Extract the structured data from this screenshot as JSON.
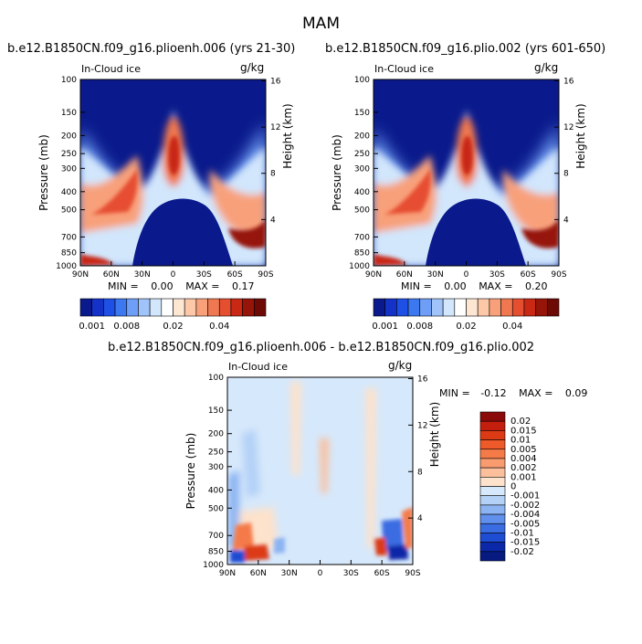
{
  "page": {
    "title": "MAM",
    "colors": {
      "background": "#ffffff",
      "text": "#000000"
    }
  },
  "chart_data": [
    {
      "type": "heatmap",
      "id": "panel-left",
      "title": "b.e12.B1850CN.f09_g16.plioenh.006 (yrs 21-30)",
      "left_label": "In-Cloud ice",
      "units": "g/kg",
      "xlabel": "",
      "ylabel": "Pressure (mb)",
      "y2label": "Height (km)",
      "x_ticks": [
        "90N",
        "60N",
        "30N",
        "0",
        "30S",
        "60S",
        "90S"
      ],
      "y_ticks": [
        "100",
        "150",
        "200",
        "250",
        "300",
        "400",
        "500",
        "700",
        "850",
        "1000"
      ],
      "y_values": [
        100,
        150,
        200,
        250,
        300,
        400,
        500,
        700,
        850,
        1000
      ],
      "y2_ticks": [
        "4",
        "8",
        "12",
        "16"
      ],
      "y2_values": [
        4,
        8,
        12,
        16
      ],
      "stats": {
        "min_label": "MIN =",
        "min": "0.00",
        "max_label": "MAX =",
        "max": "0.17"
      }
    },
    {
      "type": "heatmap",
      "id": "panel-right",
      "title": "b.e12.B1850CN.f09_g16.plio.002 (yrs 601-650)",
      "left_label": "In-Cloud ice",
      "units": "g/kg",
      "xlabel": "",
      "ylabel": "Pressure (mb)",
      "y2label": "Height (km)",
      "x_ticks": [
        "90N",
        "60N",
        "30N",
        "0",
        "30S",
        "60S",
        "90S"
      ],
      "y_ticks": [
        "100",
        "150",
        "200",
        "250",
        "300",
        "400",
        "500",
        "700",
        "850",
        "1000"
      ],
      "y_values": [
        100,
        150,
        200,
        250,
        300,
        400,
        500,
        700,
        850,
        1000
      ],
      "y2_ticks": [
        "4",
        "8",
        "12",
        "16"
      ],
      "y2_values": [
        4,
        8,
        12,
        16
      ],
      "stats": {
        "min_label": "MIN =",
        "min": "0.00",
        "max_label": "MAX =",
        "max": "0.20"
      }
    },
    {
      "type": "heatmap",
      "id": "panel-diff",
      "title": "b.e12.B1850CN.f09_g16.plioenh.006 - b.e12.B1850CN.f09_g16.plio.002",
      "left_label": "In-Cloud ice",
      "units": "g/kg",
      "xlabel": "",
      "ylabel": "Pressure (mb)",
      "y2label": "Height (km)",
      "x_ticks": [
        "90N",
        "60N",
        "30N",
        "0",
        "30S",
        "60S",
        "90S"
      ],
      "y_ticks": [
        "100",
        "150",
        "200",
        "250",
        "300",
        "400",
        "500",
        "700",
        "850",
        "1000"
      ],
      "y_values": [
        100,
        150,
        200,
        250,
        300,
        400,
        500,
        700,
        850,
        1000
      ],
      "y2_ticks": [
        "4",
        "8",
        "12",
        "16"
      ],
      "y2_values": [
        4,
        8,
        12,
        16
      ],
      "stats": {
        "min_label": "MIN =",
        "min": "-0.12",
        "max_label": "MAX =",
        "max": "0.09"
      }
    }
  ],
  "colorbars": {
    "absolute": {
      "labels": [
        "0.001",
        "0.008",
        "0.02",
        "0.04"
      ],
      "colors": [
        "#0a1a8c",
        "#1432c8",
        "#1e50e6",
        "#3c78f0",
        "#6e9ef5",
        "#a0c4fa",
        "#d2e6fc",
        "#ffffff",
        "#fde6d2",
        "#fcc8a8",
        "#f8a07a",
        "#f07850",
        "#e64e30",
        "#c82814",
        "#961408",
        "#6e0a06"
      ]
    },
    "difference": {
      "labels": [
        "0.02",
        "0.015",
        "0.01",
        "0.005",
        "0.004",
        "0.002",
        "0.001",
        "0",
        "-0.001",
        "-0.002",
        "-0.004",
        "-0.005",
        "-0.01",
        "-0.015",
        "-0.02"
      ],
      "colors": [
        "#8b0a0a",
        "#c41e0e",
        "#dc3a14",
        "#ee5a2a",
        "#f47a48",
        "#f89c70",
        "#fbbf9c",
        "#fde2cc",
        "#d6e8fb",
        "#b4d2f7",
        "#8cb4f2",
        "#6090ec",
        "#3a6ce2",
        "#1e4cd2",
        "#0a28a8",
        "#061a80"
      ]
    }
  }
}
